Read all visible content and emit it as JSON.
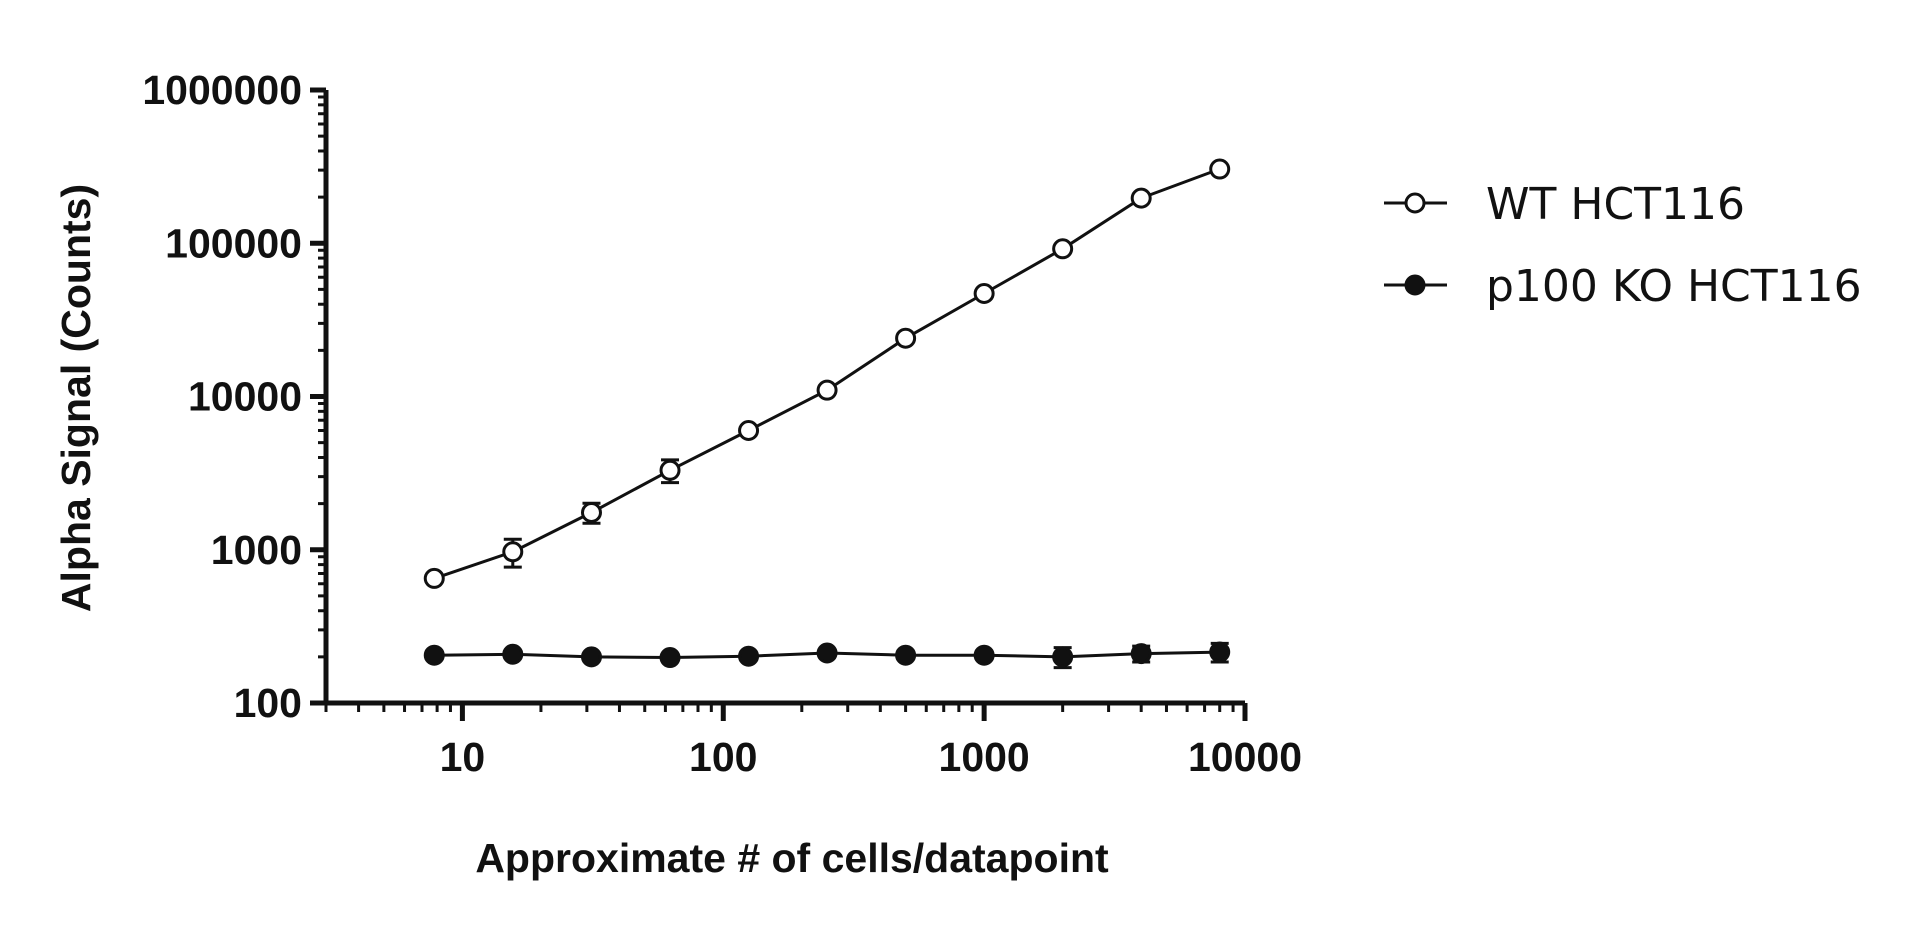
{
  "chart_data": {
    "type": "scatter",
    "title": "",
    "xlabel": "Approximate # of cells/datapoint",
    "ylabel": "Alpha Signal (Counts)",
    "x_scale": "log",
    "y_scale": "log",
    "xlim": [
      3,
      10000
    ],
    "ylim": [
      100,
      1000000
    ],
    "x_ticks": [
      10,
      100,
      1000,
      10000
    ],
    "x_tick_labels": [
      "10",
      "100",
      "1000",
      "10000"
    ],
    "y_ticks": [
      100,
      1000,
      10000,
      100000,
      1000000
    ],
    "y_tick_labels": [
      "100",
      "1000",
      "10000",
      "100000",
      "1000000"
    ],
    "legend_position": "right",
    "series": [
      {
        "name": "WT HCT116",
        "marker": "open-circle",
        "x": [
          7.8,
          15.6,
          31.25,
          62.5,
          125,
          250,
          500,
          1000,
          2000,
          4000,
          8000
        ],
        "y": [
          650,
          970,
          1750,
          3300,
          6000,
          11000,
          24000,
          47000,
          92000,
          197000,
          305000
        ],
        "error": [
          0,
          200,
          260,
          560,
          500,
          700,
          1500,
          3000,
          5000,
          10000,
          15000
        ]
      },
      {
        "name": "p100 KO HCT116",
        "marker": "filled-circle",
        "x": [
          7.8,
          15.6,
          31.25,
          62.5,
          125,
          250,
          500,
          1000,
          2000,
          4000,
          8000
        ],
        "y": [
          205,
          208,
          200,
          198,
          202,
          212,
          205,
          205,
          200,
          210,
          215
        ],
        "error": [
          4,
          5,
          4,
          4,
          5,
          8,
          5,
          5,
          30,
          25,
          30
        ]
      }
    ]
  }
}
